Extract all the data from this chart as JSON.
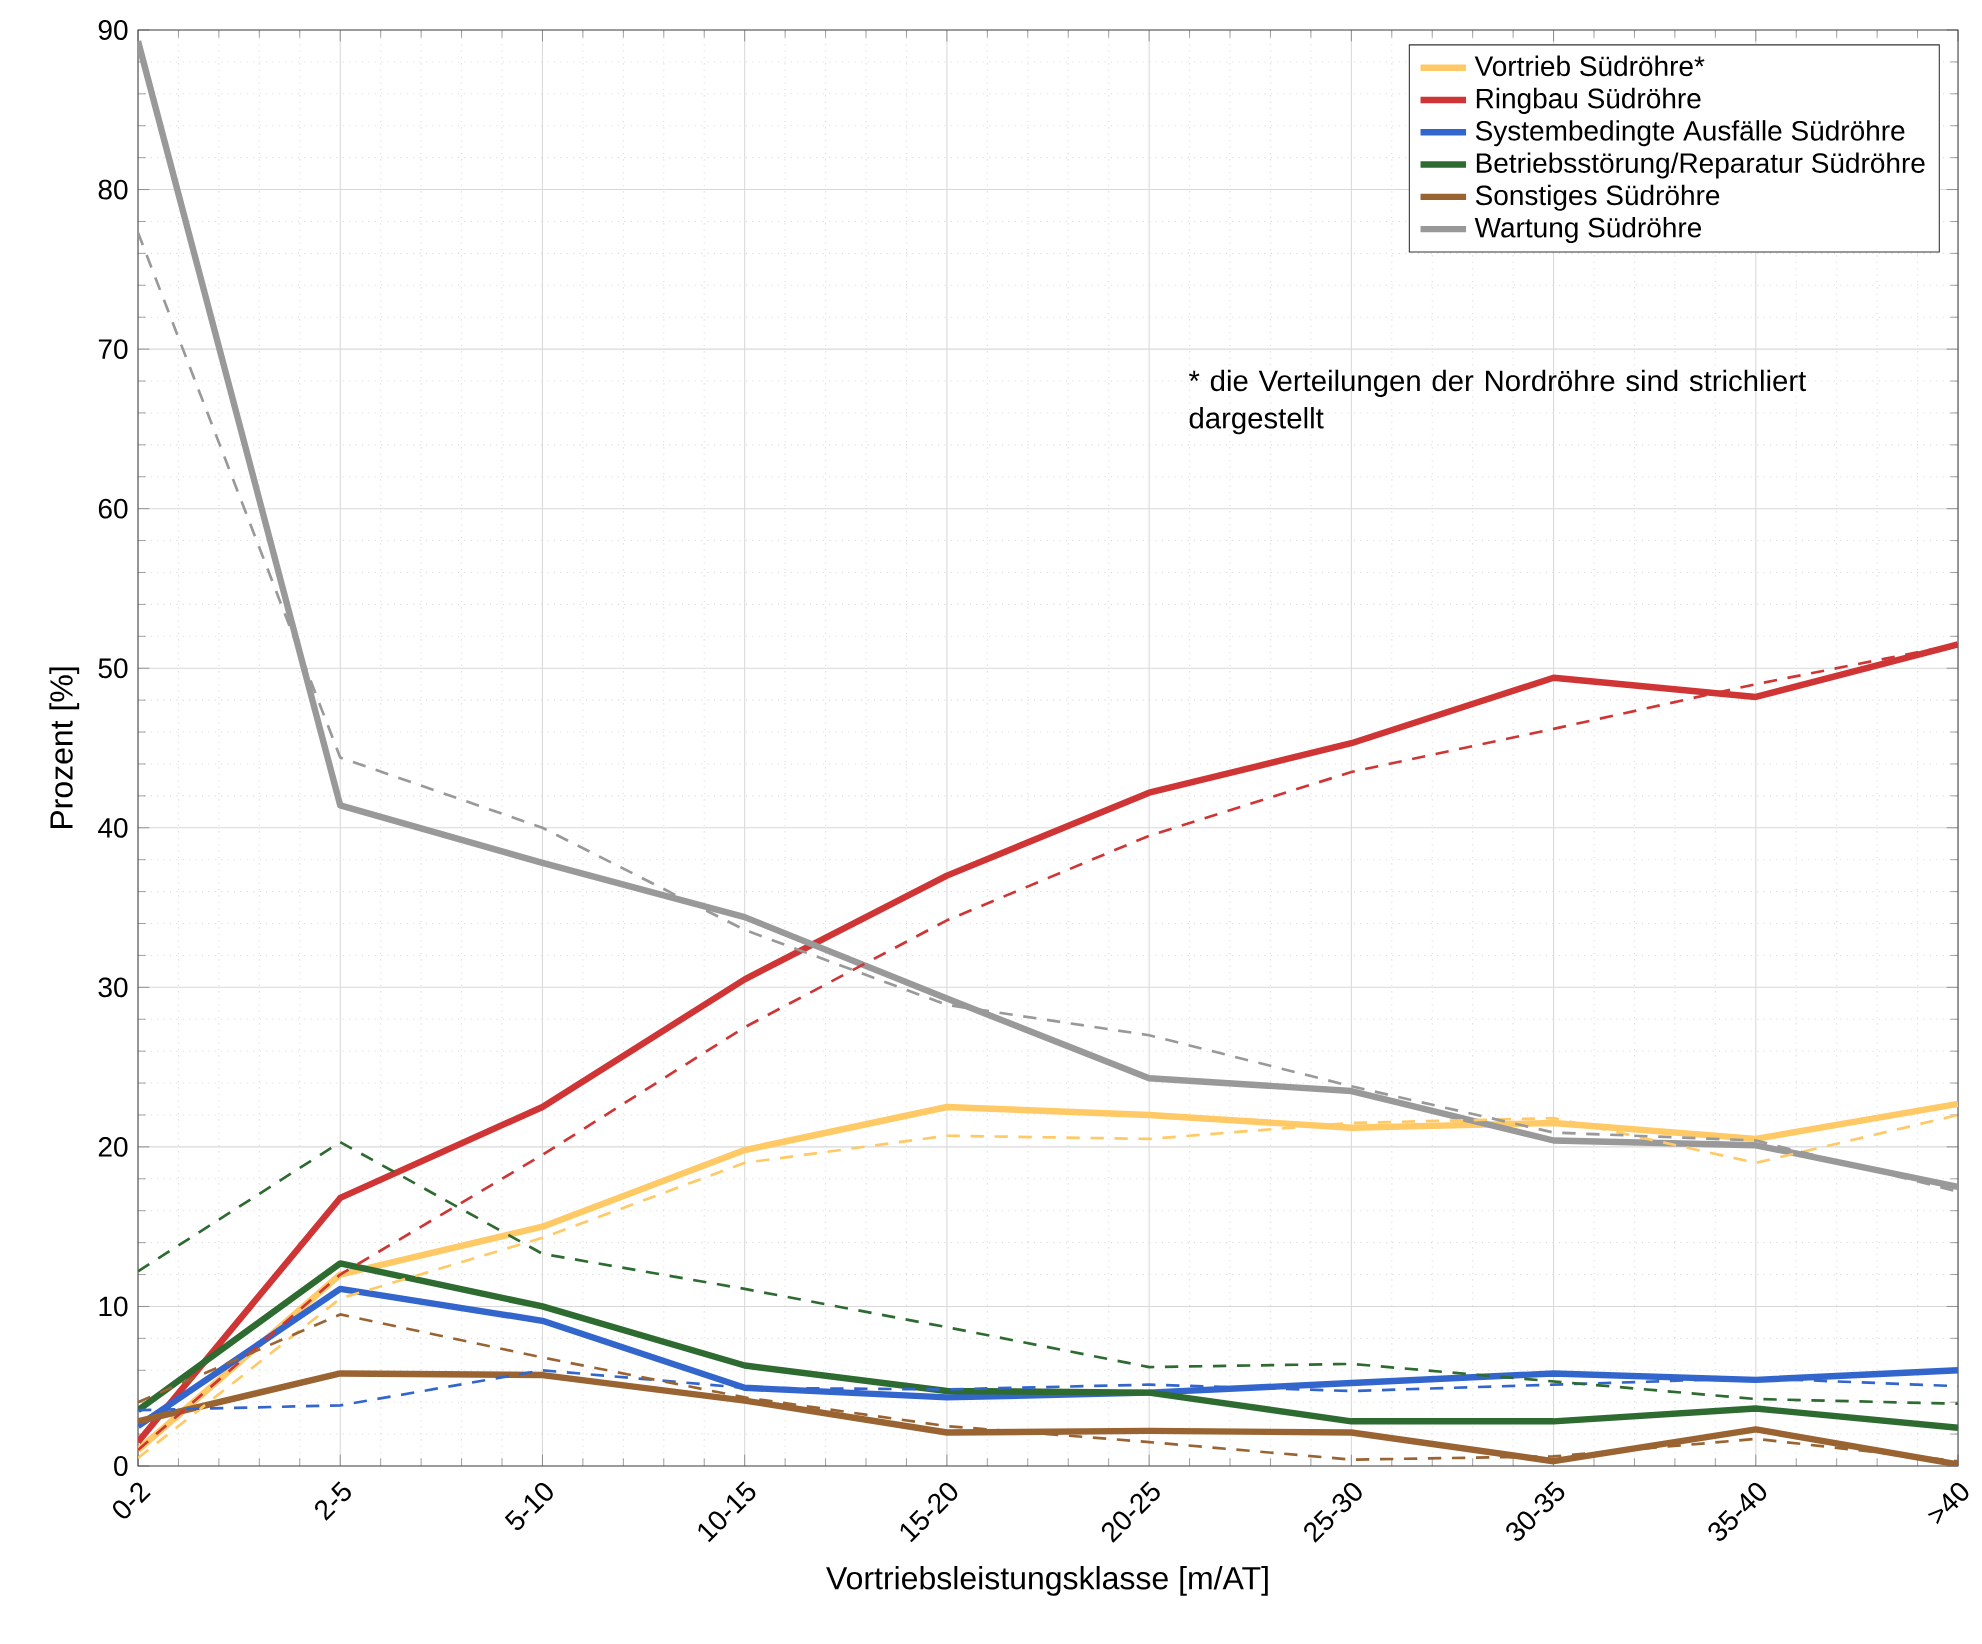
{
  "chart_data": {
    "type": "line",
    "xlabel": "Vortriebsleistungsklasse [m/AT]",
    "ylabel": "Prozent [%]",
    "categories": [
      "0-2",
      "2-5",
      "5-10",
      "10-15",
      "15-20",
      "20-25",
      "25-30",
      "30-35",
      "35-40",
      ">40"
    ],
    "series": [
      {
        "name": "Vortrieb Südröhre*",
        "color": "#ffc966",
        "line_style": "solid",
        "values": [
          1,
          12,
          15,
          19.8,
          22.5,
          22,
          21.2,
          21.5,
          20.5,
          22.7
        ]
      },
      {
        "name": "Ringbau Südröhre",
        "color": "#d03535",
        "line_style": "solid",
        "values": [
          1.5,
          16.8,
          22.5,
          30.5,
          37,
          42.2,
          45.3,
          49.4,
          48.2,
          51.5
        ]
      },
      {
        "name": "Systembedingte Ausfälle Südröhre",
        "color": "#3366cc",
        "line_style": "solid",
        "values": [
          2.5,
          11.1,
          9.1,
          4.9,
          4.3,
          4.6,
          5.2,
          5.8,
          5.4,
          6.0
        ]
      },
      {
        "name": "Betriebsstörung/Reparatur Südröhre",
        "color": "#2e6b30",
        "line_style": "solid",
        "values": [
          3.5,
          12.7,
          10.0,
          6.3,
          4.7,
          4.6,
          2.8,
          2.8,
          3.6,
          2.4
        ]
      },
      {
        "name": "Sonstiges Südröhre",
        "color": "#9a6332",
        "line_style": "solid",
        "values": [
          2.8,
          5.8,
          5.7,
          4.1,
          2.1,
          2.2,
          2.1,
          0.3,
          2.3,
          0.1
        ]
      },
      {
        "name": "Wartung Südröhre",
        "color": "#999999",
        "line_style": "solid",
        "values": [
          89.3,
          41.4,
          37.8,
          34.4,
          29.3,
          24.3,
          23.5,
          20.4,
          20.1,
          17.5
        ]
      },
      {
        "color": "#ffc966",
        "line_style": "dashed",
        "values": [
          0.5,
          10.5,
          14.3,
          19,
          20.7,
          20.5,
          21.5,
          21.8,
          19,
          22
        ]
      },
      {
        "color": "#d03535",
        "line_style": "dashed",
        "values": [
          1,
          12,
          19.5,
          27.5,
          34.2,
          39.5,
          43.5,
          46.2,
          49,
          51.5
        ]
      },
      {
        "color": "#3366cc",
        "line_style": "dashed",
        "values": [
          3.5,
          3.8,
          6.0,
          4.9,
          4.8,
          5.1,
          4.7,
          5.1,
          5.5,
          5.0
        ]
      },
      {
        "color": "#2e6b30",
        "line_style": "dashed",
        "values": [
          12.2,
          20.3,
          13.3,
          11.1,
          8.7,
          6.2,
          6.4,
          5.3,
          4.2,
          3.9
        ]
      },
      {
        "color": "#9a6332",
        "line_style": "dashed",
        "values": [
          4.0,
          9.5,
          6.8,
          4.3,
          2.5,
          1.5,
          0.4,
          0.6,
          1.7,
          0.3
        ]
      },
      {
        "color": "#999999",
        "line_style": "dashed",
        "values": [
          77.3,
          44.4,
          40.0,
          33.6,
          28.9,
          27.0,
          23.8,
          20.9,
          20.4,
          17.2
        ]
      }
    ],
    "ylim": [
      0,
      90
    ],
    "yticks": [
      0,
      10,
      20,
      30,
      40,
      50,
      60,
      70,
      80,
      90
    ],
    "grid": true,
    "legend": "top right",
    "marker": "none",
    "annotations": [
      "* die Verteilungen der Nordröhre sind strichliert dargestellt"
    ]
  }
}
